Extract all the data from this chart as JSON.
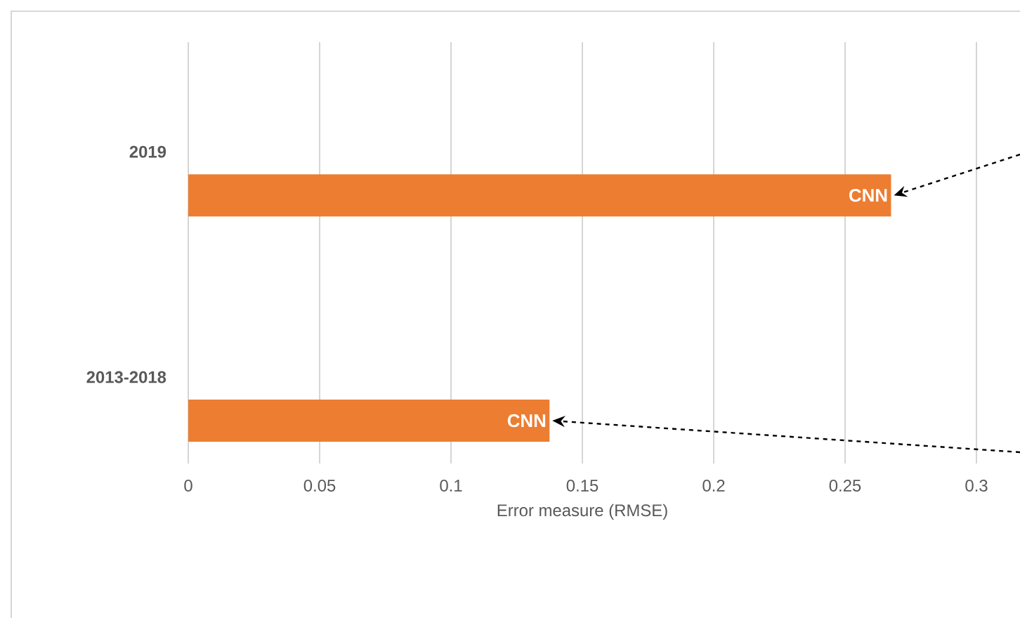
{
  "chart_data": {
    "type": "bar",
    "orientation": "horizontal",
    "categories": [
      "2019",
      "2013-2018"
    ],
    "values": [
      0.2675,
      0.1375
    ],
    "color": "#ed7d31",
    "value_labels": [
      "CNN",
      "CNN"
    ],
    "xlabel": "Error measure (RMSE)",
    "xlim": [
      0,
      0.3
    ],
    "xticks": [
      0,
      0.05,
      0.1,
      0.15,
      0.2,
      0.25,
      0.3
    ],
    "grid": "x"
  }
}
